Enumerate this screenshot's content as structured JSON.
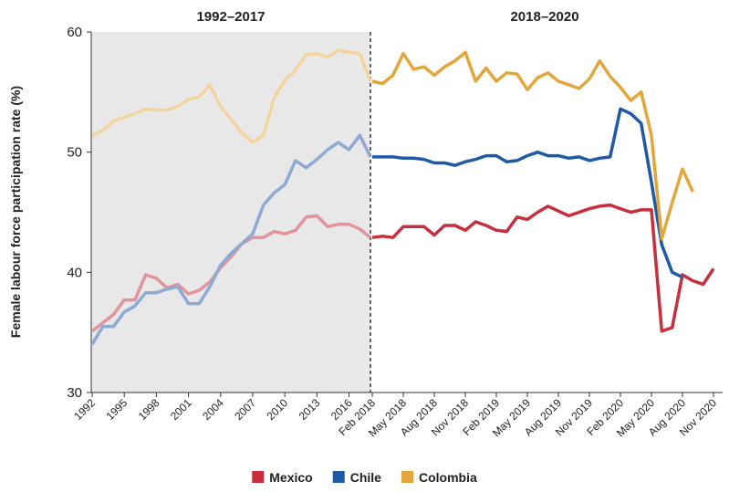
{
  "chart_data": [
    {
      "type": "line",
      "title": "1992–2017",
      "y_label": "Female labour force participation rate (%)",
      "x": [
        1992,
        1993,
        1994,
        1995,
        1996,
        1997,
        1998,
        1999,
        2000,
        2001,
        2002,
        2003,
        2004,
        2005,
        2006,
        2007,
        2008,
        2009,
        2010,
        2011,
        2012,
        2013,
        2014,
        2015,
        2016,
        2017,
        2018
      ],
      "xlim": [
        1992,
        2018
      ],
      "xticks": [
        1992,
        1995,
        1998,
        2001,
        2004,
        2007,
        2010,
        2013,
        2016
      ],
      "ylim": [
        30,
        60
      ],
      "yticks": [
        30,
        40,
        50,
        60
      ],
      "series": [
        {
          "color": "#e2939c",
          "values": [
            35.1,
            35.8,
            36.5,
            37.7,
            37.7,
            39.8,
            39.5,
            38.7,
            39.0,
            38.2,
            38.5,
            39.2,
            40.4,
            41.3,
            42.4,
            42.9,
            42.9,
            43.4,
            43.2,
            43.5,
            44.6,
            44.7,
            43.8,
            44.0,
            44.0,
            43.6,
            42.9
          ]
        },
        {
          "color": "#8eaad4",
          "values": [
            34.0,
            35.5,
            35.5,
            36.7,
            37.2,
            38.3,
            38.3,
            38.6,
            38.8,
            37.4,
            37.4,
            38.8,
            40.6,
            41.6,
            42.4,
            43.2,
            45.6,
            46.6,
            47.3,
            49.3,
            48.7,
            49.4,
            50.2,
            50.8,
            50.2,
            51.4,
            49.6
          ]
        },
        {
          "color": "#f3d49d",
          "values": [
            51.4,
            51.8,
            52.6,
            52.9,
            53.2,
            53.6,
            53.5,
            53.5,
            53.8,
            54.4,
            54.6,
            55.6,
            53.8,
            52.7,
            51.6,
            50.8,
            51.4,
            54.5,
            56.0,
            56.8,
            58.1,
            58.2,
            57.9,
            58.5,
            58.3,
            58.2,
            55.9
          ]
        }
      ]
    },
    {
      "type": "line",
      "title": "2018–2020",
      "categories": [
        "Feb 2018",
        null,
        null,
        "May 2018",
        null,
        null,
        "Aug 2018",
        null,
        null,
        "Nov 2018",
        null,
        null,
        "Feb 2019",
        null,
        null,
        "May 2019",
        null,
        null,
        "Aug 2019",
        null,
        null,
        "Nov 2019",
        null,
        null,
        "Feb 2020",
        null,
        null,
        "May 2020",
        null,
        null,
        "Aug 2020",
        null,
        null,
        "Nov 2020"
      ],
      "legend": "bottom",
      "series": [
        {
          "name": "Mexico",
          "color": "#c72f3e",
          "values": [
            42.9,
            43.0,
            42.9,
            43.8,
            43.8,
            43.8,
            43.1,
            43.9,
            43.9,
            43.5,
            44.2,
            43.9,
            43.5,
            43.4,
            44.6,
            44.4,
            45.0,
            45.5,
            45.1,
            44.7,
            45.0,
            45.3,
            45.5,
            45.6,
            45.3,
            45.0,
            45.2,
            45.2,
            35.1,
            35.4,
            39.8,
            39.3,
            39.0,
            40.3
          ]
        },
        {
          "name": "Chile",
          "color": "#1f5aa6",
          "values": [
            49.6,
            49.6,
            49.6,
            49.5,
            49.5,
            49.4,
            49.1,
            49.1,
            48.9,
            49.2,
            49.4,
            49.7,
            49.7,
            49.2,
            49.3,
            49.7,
            50.0,
            49.7,
            49.7,
            49.5,
            49.6,
            49.3,
            49.5,
            49.6,
            53.6,
            53.2,
            52.4,
            47.5,
            42.3,
            40.0,
            39.6,
            null,
            null,
            null
          ]
        },
        {
          "name": "Colombia",
          "color": "#e3a63a",
          "values": [
            55.9,
            55.7,
            56.4,
            58.2,
            56.9,
            57.1,
            56.4,
            57.1,
            57.6,
            58.3,
            55.9,
            57.0,
            55.9,
            56.6,
            56.5,
            55.2,
            56.2,
            56.6,
            55.9,
            55.6,
            55.3,
            56.1,
            57.6,
            56.3,
            55.4,
            54.3,
            55.0,
            51.4,
            42.8,
            45.8,
            48.6,
            46.7,
            null,
            null
          ]
        }
      ]
    }
  ]
}
